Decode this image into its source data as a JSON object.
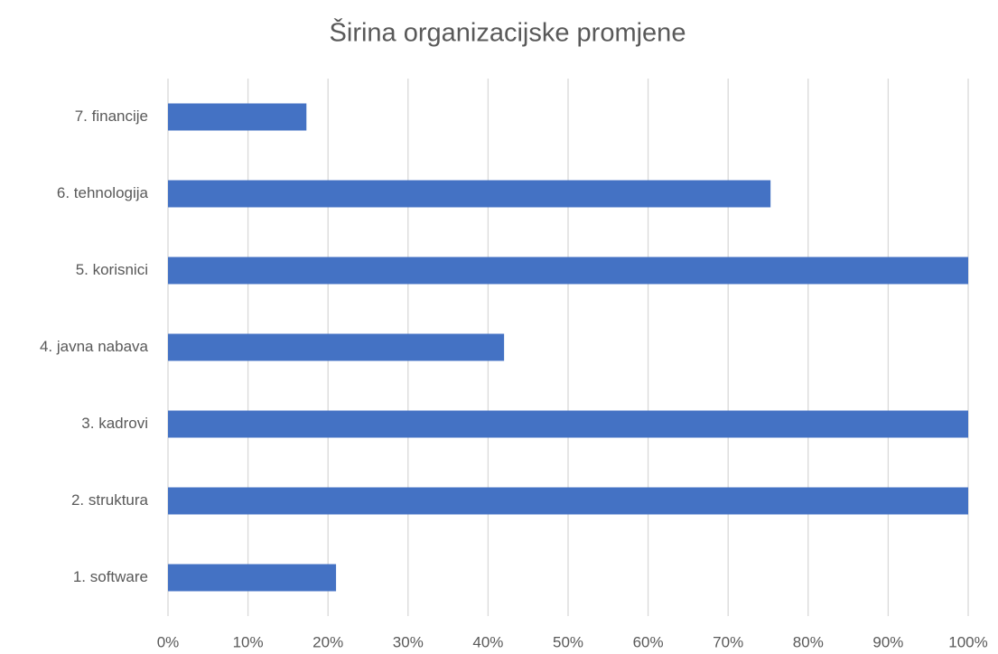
{
  "chart_data": {
    "type": "bar",
    "orientation": "horizontal",
    "title": "Širina organizacijske promjene",
    "categories": [
      "1. software",
      "2. struktura",
      "3. kadrovi",
      "4. javna nabava",
      "5. korisnici",
      "6. tehnologija",
      "7. financije"
    ],
    "values": [
      21,
      100,
      100,
      42,
      100,
      75.3,
      17.3
    ],
    "color": "#4472c4",
    "xlim": [
      0,
      100
    ],
    "xticks": [
      {
        "value": 0,
        "label": "0%"
      },
      {
        "value": 10,
        "label": "10%"
      },
      {
        "value": 20,
        "label": "20%"
      },
      {
        "value": 30,
        "label": "30%"
      },
      {
        "value": 40,
        "label": "40%"
      },
      {
        "value": 50,
        "label": "50%"
      },
      {
        "value": 60,
        "label": "60%"
      },
      {
        "value": 70,
        "label": "70%"
      },
      {
        "value": 80,
        "label": "80%"
      },
      {
        "value": 90,
        "label": "90%"
      },
      {
        "value": 100,
        "label": "100%"
      }
    ],
    "grid": true
  }
}
